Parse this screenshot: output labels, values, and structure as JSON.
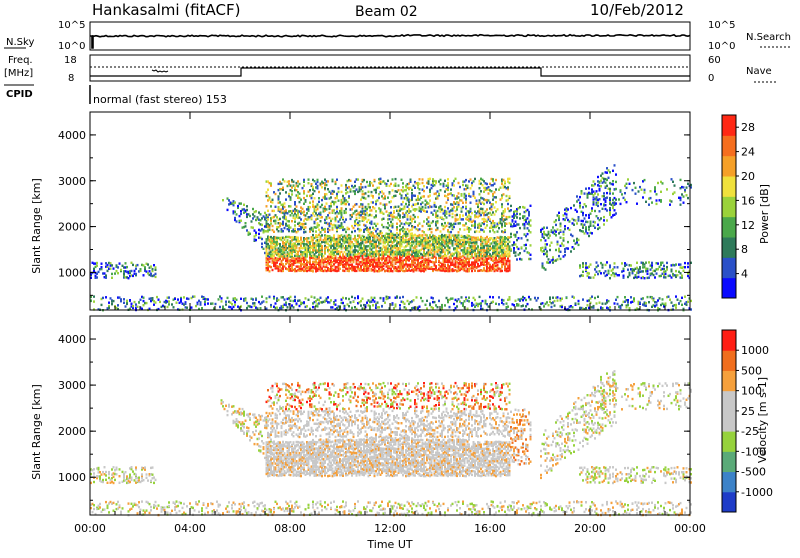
{
  "header": {
    "station": "Hankasalmi (fitACF)",
    "beam": "Beam 02",
    "date": "10/Feb/2012"
  },
  "sky_panel": {
    "left_label": "N.Sky",
    "right_label": "N.Search",
    "left_ticks": [
      "10^5",
      "10^0"
    ],
    "right_ticks": [
      "10^5",
      "10^0"
    ]
  },
  "freq_panel": {
    "left_label_1": "Freq.",
    "left_label_2": "[MHz]",
    "right_label": "Nave",
    "left_ticks": [
      "18",
      "8"
    ],
    "right_ticks": [
      "60",
      "0"
    ],
    "cpid_label": "CPID",
    "cpid_text": "normal (fast stereo) 153"
  },
  "colors": {
    "power": [
      "#0a0aff",
      "#2a50c8",
      "#2e7a5a",
      "#4aa84a",
      "#9ad23a",
      "#f0e13c",
      "#f5a028",
      "#f56e1e",
      "#ff2814"
    ],
    "velocity": [
      "#1e3cc8",
      "#3c82c8",
      "#5aaa78",
      "#96d23c",
      "#c8c8c8",
      "#c8c8c8",
      "#f5a03c",
      "#f06e1e",
      "#ff1e14"
    ]
  },
  "chart_data": [
    {
      "type": "heatmap",
      "title": "Power",
      "ylabel": "Slant Range [km]",
      "ylim": [
        180,
        4500
      ],
      "yticks": [
        "4000",
        "3000",
        "2000",
        "1000"
      ],
      "colorbar_label": "Power [dB]",
      "colorbar_ticks": [
        "28",
        "24",
        "20",
        "16",
        "12",
        "8",
        "4"
      ],
      "colorbar_range": [
        0,
        30
      ]
    },
    {
      "type": "heatmap",
      "title": "Velocity",
      "ylabel": "Slant Range [km]",
      "ylim": [
        180,
        4500
      ],
      "yticks": [
        "4000",
        "3000",
        "2000",
        "1000"
      ],
      "colorbar_label": "Velocity [m s-1]",
      "colorbar_ticks": [
        "1000",
        "500",
        "100",
        "25",
        "-25",
        "-100",
        "-500",
        "-1000"
      ]
    }
  ],
  "xaxis": {
    "ticks": [
      "00:00",
      "04:00",
      "08:00",
      "12:00",
      "16:00",
      "20:00",
      "00:00"
    ],
    "label": "Time UT"
  }
}
